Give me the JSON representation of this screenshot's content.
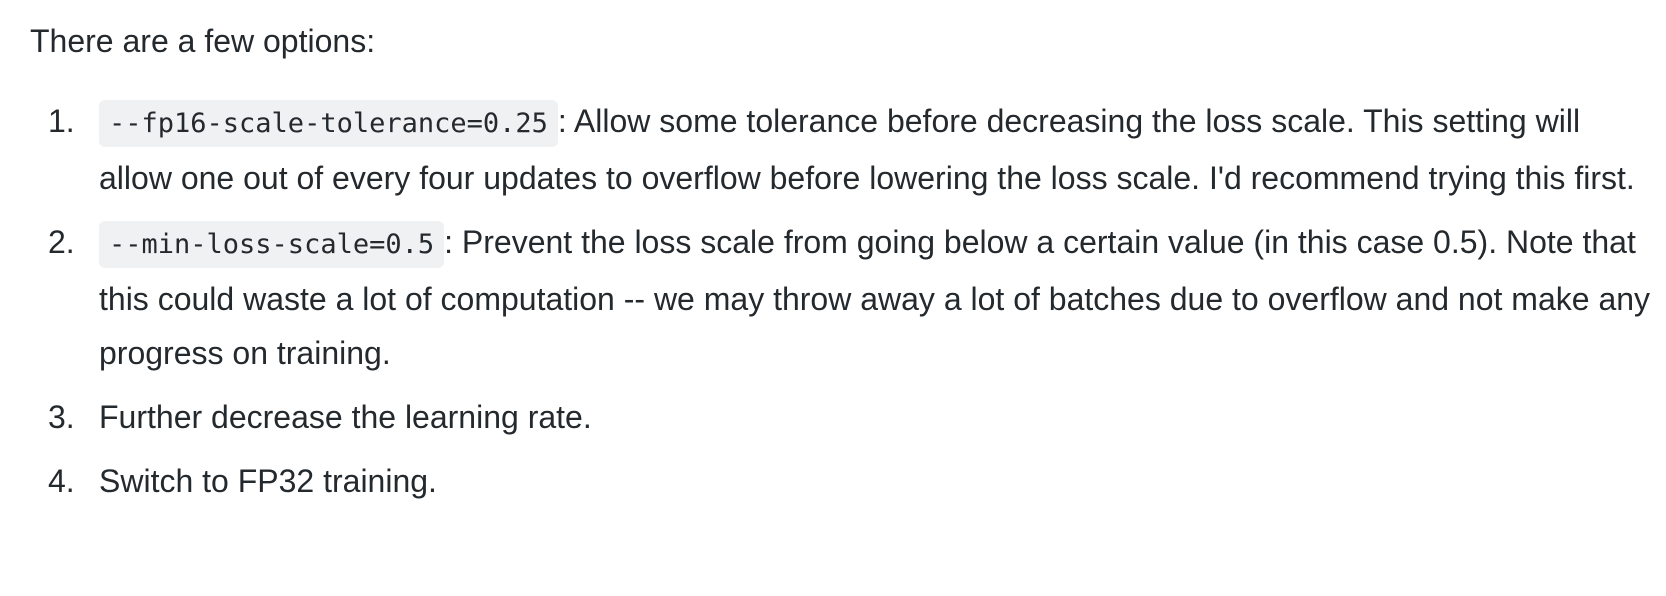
{
  "intro": "There are a few options:",
  "options": [
    {
      "number": "1.",
      "flag": "--fp16-scale-tolerance=0.25",
      "text": ": Allow some tolerance before decreasing the loss scale. This setting will allow one out of every four updates to overflow before lowering the loss scale. I'd recommend trying this first."
    },
    {
      "number": "2.",
      "flag": "--min-loss-scale=0.5",
      "text": ": Prevent the loss scale from going below a certain value (in this case 0.5). Note that this could waste a lot of computation -- we may throw away a lot of batches due to overflow and not make any progress on training."
    },
    {
      "number": "3.",
      "text": "Further decrease the learning rate."
    },
    {
      "number": "4.",
      "text": "Switch to FP32 training."
    }
  ]
}
